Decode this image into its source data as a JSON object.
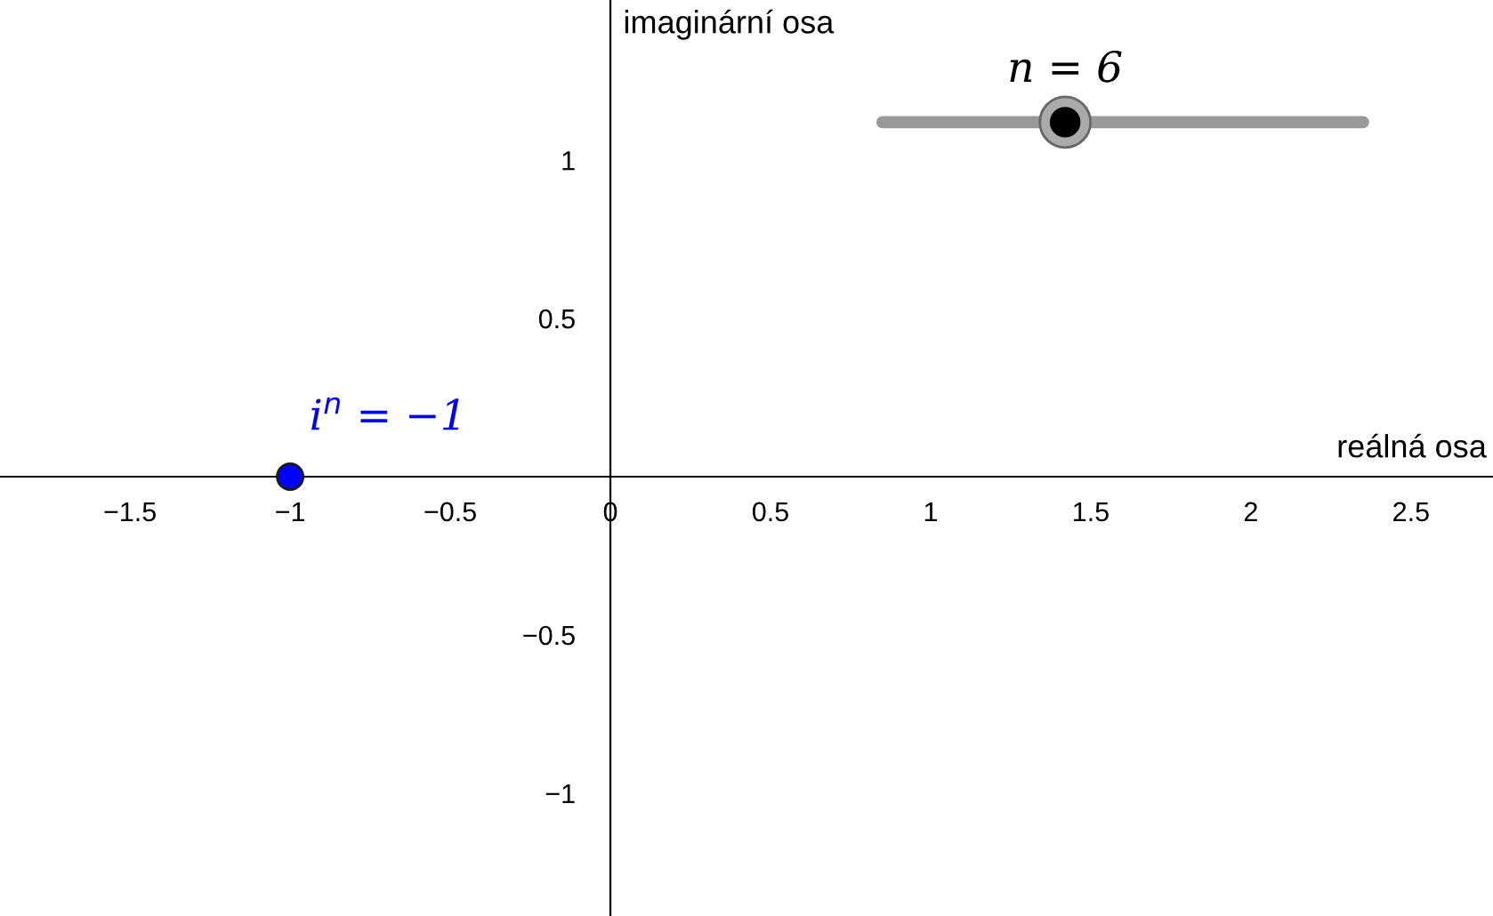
{
  "chart_data": {
    "type": "scatter",
    "xlabel": "reálná osa",
    "ylabel": "imaginární osa",
    "x": [
      -1
    ],
    "series": [
      {
        "color": "#0000ff",
        "values": [
          0
        ]
      }
    ],
    "marker": "circle",
    "xlim": [
      -1.906,
      2.756
    ],
    "ylim": [
      -1.388,
      1.506
    ],
    "xticks": [
      -1.5,
      -1,
      -0.5,
      {
        "value": 0,
        "label": "0"
      },
      0.5,
      1,
      1.5,
      2,
      2.5
    ],
    "yticks": [
      -1,
      -0.5,
      0.5,
      1
    ],
    "grid": false,
    "annotations": [
      {
        "text": "i$^{n}$ = −1",
        "x": -1,
        "y": 0
      },
      "n = 6"
    ]
  }
}
